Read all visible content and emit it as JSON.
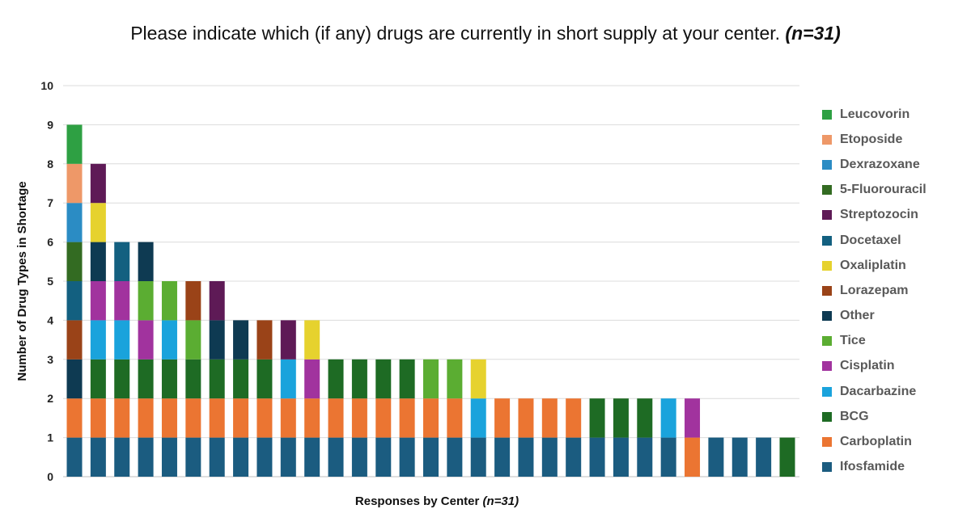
{
  "chart_data": {
    "type": "bar",
    "stacked": true,
    "title": "Please indicate which (if any) drugs are currently in short supply at your center.",
    "title_suffix": "(n=31)",
    "xlabel": "Responses by Center",
    "xlabel_suffix": "(n=31)",
    "ylabel": "Number of Drug Types in Shortage",
    "ylim": [
      0,
      10
    ],
    "yticks": [
      0,
      1,
      2,
      3,
      4,
      5,
      6,
      7,
      8,
      9,
      10
    ],
    "grid": true,
    "legend_position": "right",
    "legend": [
      {
        "name": "Leucovorin",
        "color": "#2ea043"
      },
      {
        "name": "Etoposide",
        "color": "#ee9868"
      },
      {
        "name": "Dexrazoxane",
        "color": "#2b8cc4"
      },
      {
        "name": "5-Fluorouracil",
        "color": "#336b22"
      },
      {
        "name": "Streptozocin",
        "color": "#5e1a56"
      },
      {
        "name": "Docetaxel",
        "color": "#136080"
      },
      {
        "name": "Oxaliplatin",
        "color": "#e6d22e"
      },
      {
        "name": "Lorazepam",
        "color": "#9a4318"
      },
      {
        "name": "Other",
        "color": "#0e3a52"
      },
      {
        "name": "Tice",
        "color": "#5bad32"
      },
      {
        "name": "Cisplatin",
        "color": "#a1339e"
      },
      {
        "name": "Dacarbazine",
        "color": "#1aa3dc"
      },
      {
        "name": "BCG",
        "color": "#1e6b24"
      },
      {
        "name": "Carboplatin",
        "color": "#eb7532"
      },
      {
        "name": "Ifosfamide",
        "color": "#1b5c80"
      }
    ],
    "centers": [
      [
        "Ifosfamide",
        "Carboplatin",
        "Other",
        "Lorazepam",
        "Docetaxel",
        "5-Fluorouracil",
        "Dexrazoxane",
        "Etoposide",
        "Leucovorin"
      ],
      [
        "Ifosfamide",
        "Carboplatin",
        "BCG",
        "Dacarbazine",
        "Cisplatin",
        "Other",
        "Oxaliplatin",
        "Streptozocin"
      ],
      [
        "Ifosfamide",
        "Carboplatin",
        "BCG",
        "Dacarbazine",
        "Cisplatin",
        "Docetaxel"
      ],
      [
        "Ifosfamide",
        "Carboplatin",
        "BCG",
        "Cisplatin",
        "Tice",
        "Other"
      ],
      [
        "Ifosfamide",
        "Carboplatin",
        "BCG",
        "Dacarbazine",
        "Tice"
      ],
      [
        "Ifosfamide",
        "Carboplatin",
        "BCG",
        "Tice",
        "Lorazepam"
      ],
      [
        "Ifosfamide",
        "Carboplatin",
        "BCG",
        "Other",
        "Streptozocin"
      ],
      [
        "Ifosfamide",
        "Carboplatin",
        "BCG",
        "Other"
      ],
      [
        "Ifosfamide",
        "Carboplatin",
        "BCG",
        "Lorazepam"
      ],
      [
        "Ifosfamide",
        "Carboplatin",
        "Dacarbazine",
        "Streptozocin"
      ],
      [
        "Ifosfamide",
        "Carboplatin",
        "Cisplatin",
        "Oxaliplatin"
      ],
      [
        "Ifosfamide",
        "Carboplatin",
        "BCG"
      ],
      [
        "Ifosfamide",
        "Carboplatin",
        "BCG"
      ],
      [
        "Ifosfamide",
        "Carboplatin",
        "BCG"
      ],
      [
        "Ifosfamide",
        "Carboplatin",
        "BCG"
      ],
      [
        "Ifosfamide",
        "Carboplatin",
        "Tice"
      ],
      [
        "Ifosfamide",
        "Carboplatin",
        "Tice"
      ],
      [
        "Ifosfamide",
        "Dacarbazine",
        "Oxaliplatin"
      ],
      [
        "Ifosfamide",
        "Carboplatin"
      ],
      [
        "Ifosfamide",
        "Carboplatin"
      ],
      [
        "Ifosfamide",
        "Carboplatin"
      ],
      [
        "Ifosfamide",
        "Carboplatin"
      ],
      [
        "Ifosfamide",
        "BCG"
      ],
      [
        "Ifosfamide",
        "BCG"
      ],
      [
        "Ifosfamide",
        "BCG"
      ],
      [
        "Ifosfamide",
        "Dacarbazine"
      ],
      [
        "Carboplatin",
        "Cisplatin"
      ],
      [
        "Ifosfamide"
      ],
      [
        "Ifosfamide"
      ],
      [
        "Ifosfamide"
      ],
      [
        "BCG"
      ]
    ]
  }
}
